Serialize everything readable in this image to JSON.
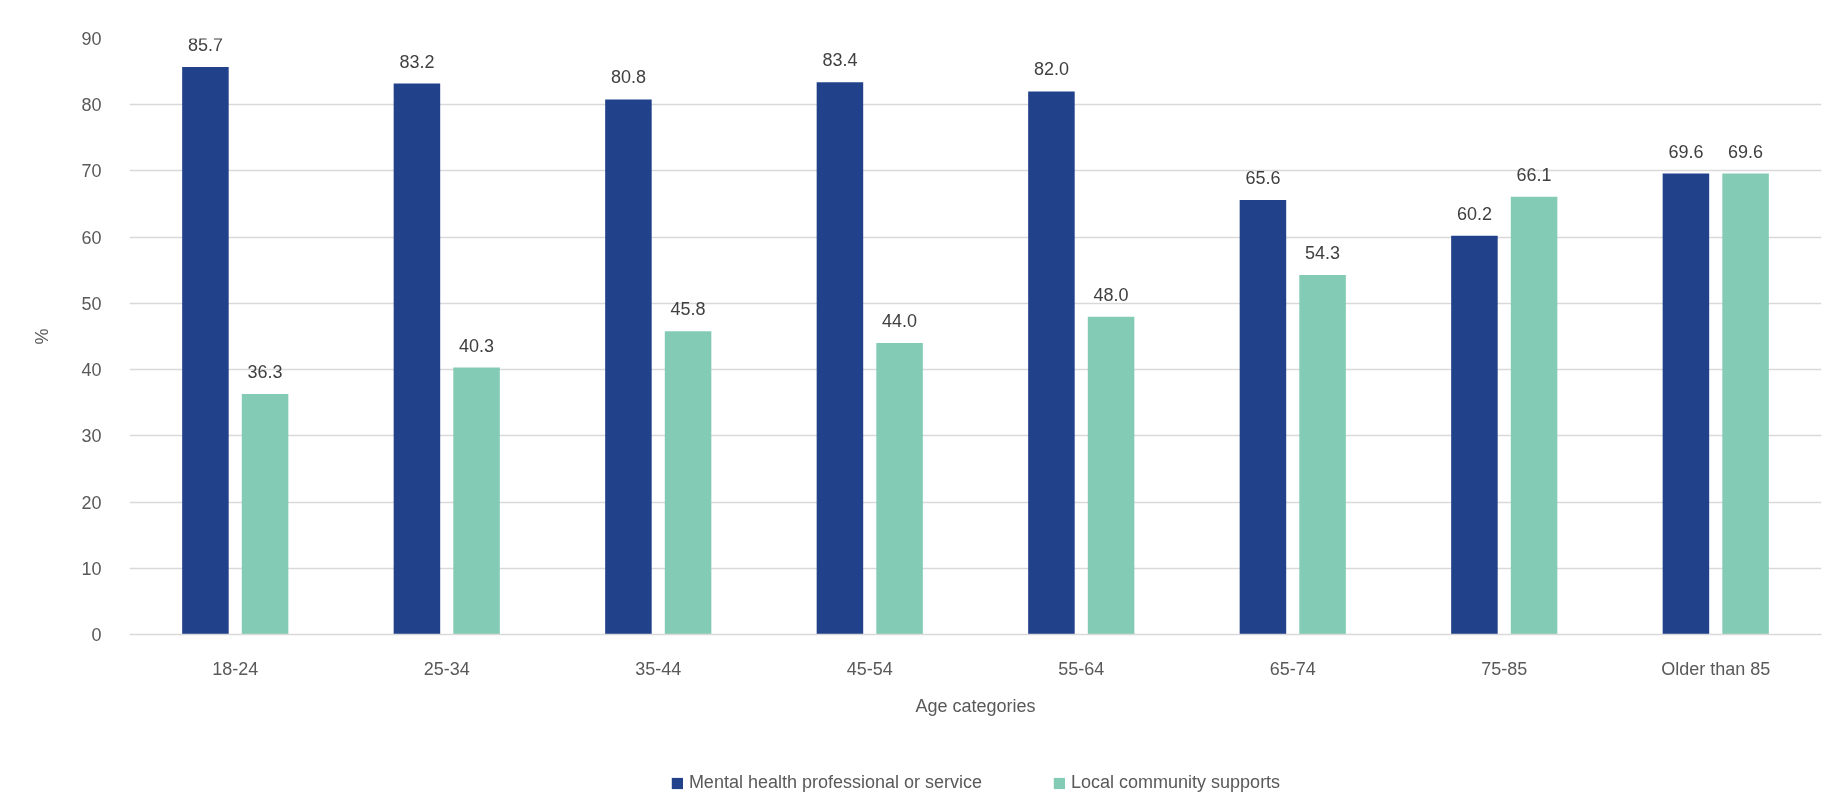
{
  "chart_data": {
    "type": "bar",
    "xlabel": "Age categories",
    "ylabel": "%",
    "categories": [
      "18-24",
      "25-34",
      "35-44",
      "45-54",
      "55-64",
      "65-74",
      "75-85",
      "Older than 85"
    ],
    "series": [
      {
        "name": "Mental health professional or service",
        "color": "#22418b",
        "values": [
          85.7,
          83.2,
          80.8,
          83.4,
          82.0,
          65.6,
          60.2,
          69.6
        ],
        "value_labels": [
          "85.7",
          "83.2",
          "80.8",
          "83.4",
          "82.0",
          "65.6",
          "60.2",
          "69.6"
        ]
      },
      {
        "name": "Local community supports",
        "color": "#83cbb5",
        "values": [
          36.3,
          40.3,
          45.8,
          44.0,
          48.0,
          54.3,
          66.1,
          69.6
        ],
        "value_labels": [
          "36.3",
          "40.3",
          "45.8",
          "44.0",
          "48.0",
          "54.3",
          "66.1",
          "69.6"
        ]
      }
    ],
    "ylim": [
      0,
      90
    ],
    "yticks": [
      0,
      10,
      20,
      30,
      40,
      50,
      60,
      70,
      80,
      90
    ],
    "grid": "y",
    "legend": "bottom"
  }
}
